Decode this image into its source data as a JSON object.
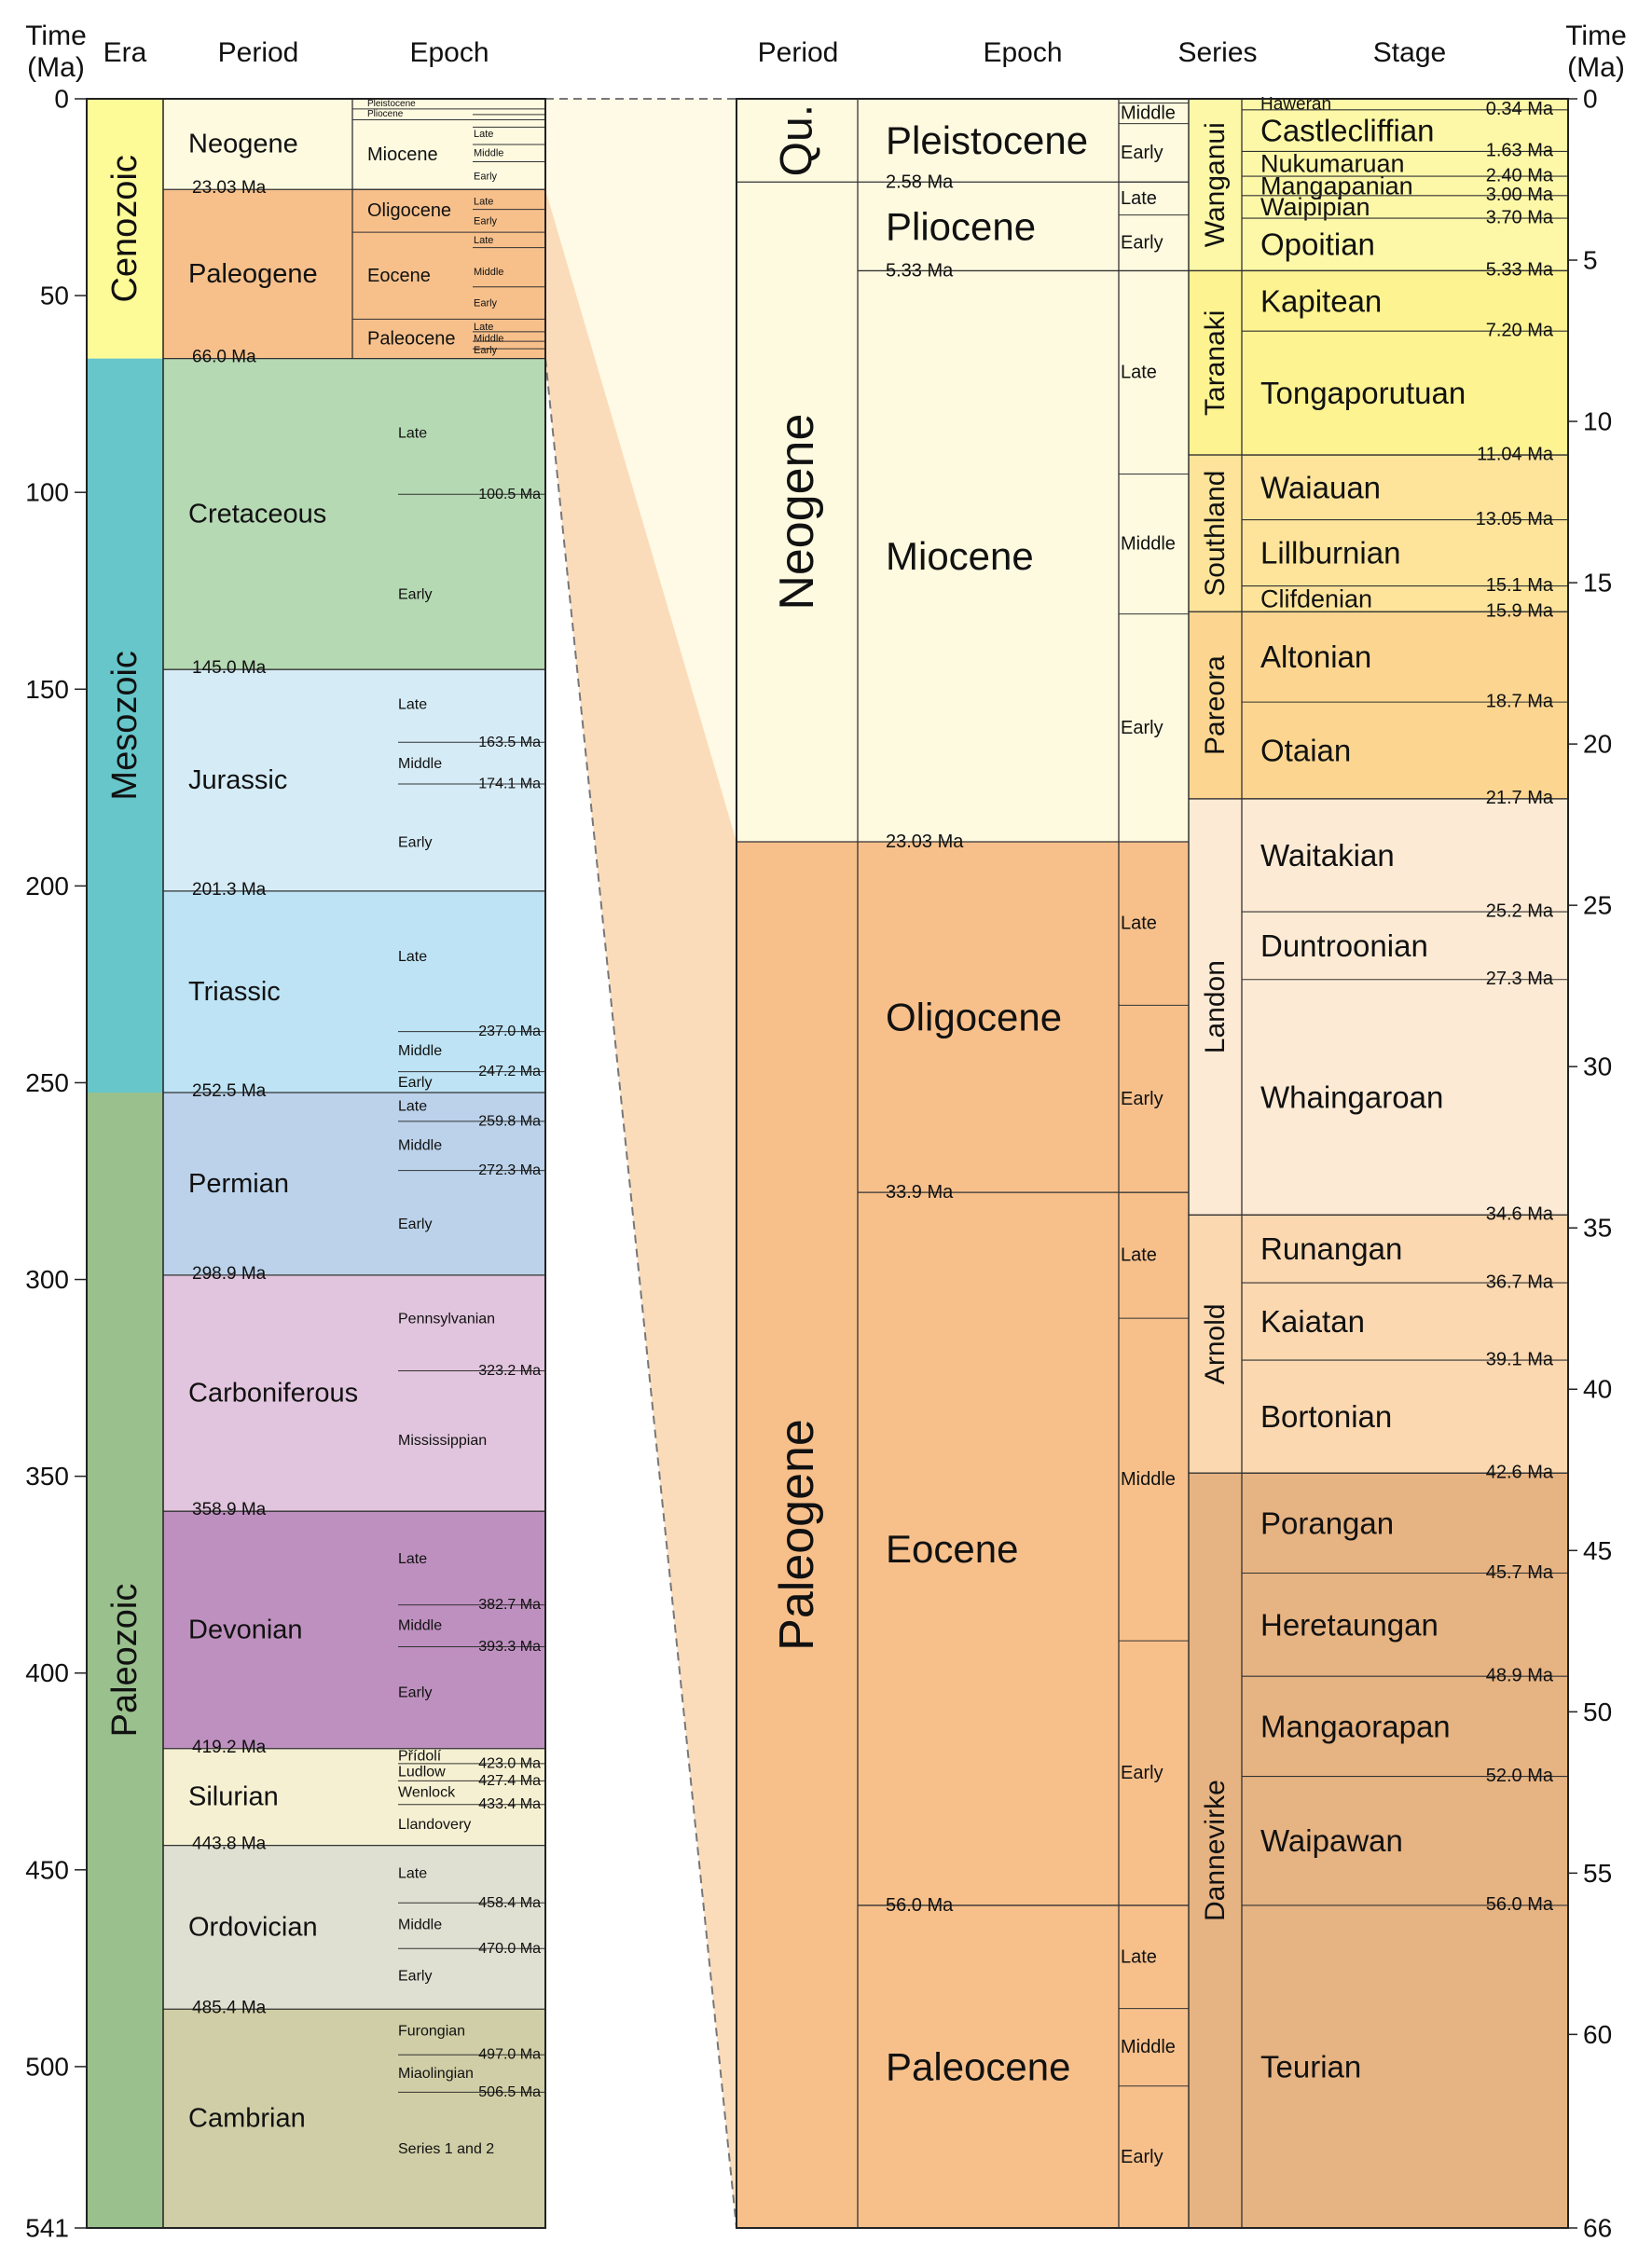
{
  "colors": {
    "cenozoic": "#fdfb98",
    "mesozoic": "#67c6ca",
    "paleozoic": "#99c08d",
    "neogene": "#fefae0",
    "paleogene": "#f7c08b",
    "cretaceous": "#b5d9b3",
    "jurassic": "#d5ecf7",
    "triassic": "#bde3f4",
    "permian": "#bbd2ea",
    "carboniferous": "#e1c4dd",
    "devonian": "#be90bf",
    "silurian": "#f5f0d1",
    "ordovician": "#e0e0d2",
    "cambrian": "#d0cea6",
    "wanganui": "#fdf8a7",
    "taranaki": "#fdf391",
    "southland": "#fde49a",
    "pareora": "#fcd690",
    "landon": "#fdead4",
    "arnold": "#fbd8b0",
    "dannevirke": "#e6b382",
    "connector_neogene": "#fefae5",
    "connector_paleogene": "#fbdcba"
  },
  "left_panel": {
    "headers": {
      "time": "Time",
      "time_unit": "(Ma)",
      "era": "Era",
      "period": "Period",
      "epoch": "Epoch"
    },
    "axis": {
      "min": 0,
      "max": 541,
      "ticks": [
        "0",
        "50",
        "100",
        "150",
        "200",
        "250",
        "300",
        "350",
        "400",
        "450",
        "500",
        "541"
      ]
    },
    "eras": [
      {
        "name": "Cenozoic",
        "start": 0,
        "end": 66.0,
        "color": "cenozoic"
      },
      {
        "name": "Mesozoic",
        "start": 66.0,
        "end": 252.5,
        "color": "mesozoic"
      },
      {
        "name": "Paleozoic",
        "start": 252.5,
        "end": 541,
        "color": "paleozoic"
      }
    ],
    "periods": [
      {
        "name": "Neogene",
        "start": 0,
        "end": 23.03,
        "color": "neogene",
        "boundary_label": ""
      },
      {
        "name": "Paleogene",
        "start": 23.03,
        "end": 66.0,
        "color": "paleogene",
        "boundary_label": "23.03 Ma"
      },
      {
        "name": "Cretaceous",
        "start": 66.0,
        "end": 145.0,
        "color": "cretaceous",
        "boundary_label": "66.0 Ma"
      },
      {
        "name": "Jurassic",
        "start": 145.0,
        "end": 201.3,
        "color": "jurassic",
        "boundary_label": "145.0 Ma"
      },
      {
        "name": "Triassic",
        "start": 201.3,
        "end": 252.5,
        "color": "triassic",
        "boundary_label": "201.3 Ma"
      },
      {
        "name": "Permian",
        "start": 252.5,
        "end": 298.9,
        "color": "permian",
        "boundary_label": "252.5 Ma"
      },
      {
        "name": "Carboniferous",
        "start": 298.9,
        "end": 358.9,
        "color": "carboniferous",
        "boundary_label": "298.9 Ma"
      },
      {
        "name": "Devonian",
        "start": 358.9,
        "end": 419.2,
        "color": "devonian",
        "boundary_label": "358.9 Ma"
      },
      {
        "name": "Silurian",
        "start": 419.2,
        "end": 443.8,
        "color": "silurian",
        "boundary_label": "419.2 Ma"
      },
      {
        "name": "Ordovician",
        "start": 443.8,
        "end": 485.4,
        "color": "ordovician",
        "boundary_label": "443.8 Ma"
      },
      {
        "name": "Cambrian",
        "start": 485.4,
        "end": 541,
        "color": "cambrian",
        "boundary_label": "485.4 Ma"
      }
    ],
    "cenozoic_epochs": [
      {
        "name": "Pleistocene",
        "start": 0,
        "end": 2.58
      },
      {
        "name": "Pliocene",
        "start": 2.58,
        "end": 5.33
      },
      {
        "name": "Miocene",
        "start": 5.33,
        "end": 23.03
      },
      {
        "name": "Oligocene",
        "start": 23.03,
        "end": 33.9
      },
      {
        "name": "Eocene",
        "start": 33.9,
        "end": 56.0
      },
      {
        "name": "Paleocene",
        "start": 56.0,
        "end": 66.0
      }
    ],
    "cenozoic_subepochs": [
      {
        "label": "Late",
        "at": 9.0
      },
      {
        "label": "Middle",
        "at": 13.9
      },
      {
        "label": "Early",
        "at": 19.8
      },
      {
        "label": "Late",
        "at": 26.2
      },
      {
        "label": "Early",
        "at": 31.2
      },
      {
        "label": "Late",
        "at": 36.0
      },
      {
        "label": "Middle",
        "at": 44.0
      },
      {
        "label": "Early",
        "at": 52.0
      },
      {
        "label": "Late",
        "at": 58.0
      },
      {
        "label": "Middle",
        "at": 61.0
      },
      {
        "label": "Early",
        "at": 64.0
      }
    ],
    "cenozoic_subepoch_lines": [
      4.0,
      7.2,
      11.6,
      16.0,
      28.1,
      37.8,
      47.8,
      59.2,
      61.6,
      63.5
    ],
    "mesozoic_paleozoic_epochs": [
      {
        "label": "Late",
        "at": 85.0
      },
      {
        "label": "Early",
        "at": 126.0
      },
      {
        "label": "Late",
        "at": 154.0
      },
      {
        "label": "Middle",
        "at": 169.0
      },
      {
        "label": "Early",
        "at": 189.0
      },
      {
        "label": "Late",
        "at": 218.0
      },
      {
        "label": "Middle",
        "at": 242.0
      },
      {
        "label": "Early",
        "at": 250.0
      },
      {
        "label": "Late",
        "at": 256.0
      },
      {
        "label": "Middle",
        "at": 266.0
      },
      {
        "label": "Early",
        "at": 286.0
      },
      {
        "label": "Pennsylvanian",
        "at": 310.0
      },
      {
        "label": "Mississippian",
        "at": 341.0
      },
      {
        "label": "Late",
        "at": 371.0
      },
      {
        "label": "Middle",
        "at": 388.0
      },
      {
        "label": "Early",
        "at": 405.0
      },
      {
        "label": "Přídolí",
        "at": 421.2
      },
      {
        "label": "Ludlow",
        "at": 425.2
      },
      {
        "label": "Wenlock",
        "at": 430.4
      },
      {
        "label": "Llandovery",
        "at": 438.6
      },
      {
        "label": "Late",
        "at": 451.0
      },
      {
        "label": "Middle",
        "at": 464.0
      },
      {
        "label": "Early",
        "at": 477.0
      },
      {
        "label": "Furongian",
        "at": 491.0
      },
      {
        "label": "Miaolingian",
        "at": 501.8
      },
      {
        "label": "Series 1 and 2",
        "at": 521.0
      }
    ],
    "epoch_boundaries": [
      {
        "at": 100.5,
        "label": "100.5 Ma"
      },
      {
        "at": 163.5,
        "label": "163.5 Ma"
      },
      {
        "at": 174.1,
        "label": "174.1 Ma"
      },
      {
        "at": 237.0,
        "label": "237.0 Ma"
      },
      {
        "at": 247.2,
        "label": "247.2 Ma"
      },
      {
        "at": 259.8,
        "label": "259.8 Ma"
      },
      {
        "at": 272.3,
        "label": "272.3 Ma"
      },
      {
        "at": 323.2,
        "label": "323.2 Ma"
      },
      {
        "at": 382.7,
        "label": "382.7 Ma"
      },
      {
        "at": 393.3,
        "label": "393.3 Ma"
      },
      {
        "at": 423.0,
        "label": "423.0 Ma"
      },
      {
        "at": 427.4,
        "label": "427.4 Ma"
      },
      {
        "at": 433.4,
        "label": "433.4 Ma"
      },
      {
        "at": 458.4,
        "label": "458.4 Ma"
      },
      {
        "at": 470.0,
        "label": "470.0 Ma"
      },
      {
        "at": 497.0,
        "label": "497.0 Ma"
      },
      {
        "at": 506.5,
        "label": "506.5 Ma"
      }
    ]
  },
  "right_panel": {
    "headers": {
      "period": "Period",
      "epoch": "Epoch",
      "series": "Series",
      "stage": "Stage",
      "time": "Time",
      "time_unit": "(Ma)"
    },
    "axis": {
      "min": 0,
      "max": 66,
      "ticks": [
        "0",
        "5",
        "10",
        "15",
        "20",
        "25",
        "30",
        "35",
        "40",
        "45",
        "50",
        "55",
        "60",
        "66"
      ]
    },
    "periods": [
      {
        "name": "Qu.",
        "start": 0,
        "end": 2.58,
        "color": "neogene"
      },
      {
        "name": "Neogene",
        "start": 2.58,
        "end": 23.03,
        "color": "neogene"
      },
      {
        "name": "Paleogene",
        "start": 23.03,
        "end": 66,
        "color": "paleogene"
      }
    ],
    "epochs": [
      {
        "name": "Pleistocene",
        "start": 0,
        "end": 2.58,
        "boundary_label": ""
      },
      {
        "name": "Pliocene",
        "start": 2.58,
        "end": 5.33,
        "boundary_label": "2.58 Ma"
      },
      {
        "name": "Miocene",
        "start": 5.33,
        "end": 23.03,
        "boundary_label": "5.33 Ma"
      },
      {
        "name": "Oligocene",
        "start": 23.03,
        "end": 33.9,
        "boundary_label": "23.03 Ma"
      },
      {
        "name": "Eocene",
        "start": 33.9,
        "end": 56.0,
        "boundary_label": "33.9 Ma"
      },
      {
        "name": "Paleocene",
        "start": 56.0,
        "end": 66,
        "boundary_label": "56.0 Ma"
      }
    ],
    "subepochs": [
      {
        "label": "Middle",
        "start": 0.13,
        "end": 0.77
      },
      {
        "label": "Early",
        "start": 0.77,
        "end": 2.58
      },
      {
        "label": "Late",
        "start": 2.58,
        "end": 3.6
      },
      {
        "label": "Early",
        "start": 3.6,
        "end": 5.33
      },
      {
        "label": "Late",
        "start": 5.33,
        "end": 11.63
      },
      {
        "label": "Middle",
        "start": 11.63,
        "end": 15.97
      },
      {
        "label": "Early",
        "start": 15.97,
        "end": 23.03
      },
      {
        "label": "Late",
        "start": 23.03,
        "end": 28.1
      },
      {
        "label": "Early",
        "start": 28.1,
        "end": 33.9
      },
      {
        "label": "Late",
        "start": 33.9,
        "end": 37.8
      },
      {
        "label": "Middle",
        "start": 37.8,
        "end": 47.8
      },
      {
        "label": "Early",
        "start": 47.8,
        "end": 56.0
      },
      {
        "label": "Late",
        "start": 56.0,
        "end": 59.2
      },
      {
        "label": "Middle",
        "start": 59.2,
        "end": 61.6
      },
      {
        "label": "Early",
        "start": 61.6,
        "end": 66
      }
    ],
    "series": [
      {
        "name": "Wanganui",
        "start": 0,
        "end": 5.33,
        "color": "wanganui"
      },
      {
        "name": "Taranaki",
        "start": 5.33,
        "end": 11.04,
        "color": "taranaki"
      },
      {
        "name": "Southland",
        "start": 11.04,
        "end": 15.9,
        "color": "southland"
      },
      {
        "name": "Pareora",
        "start": 15.9,
        "end": 21.7,
        "color": "pareora"
      },
      {
        "name": "Landon",
        "start": 21.7,
        "end": 34.6,
        "color": "landon"
      },
      {
        "name": "Arnold",
        "start": 34.6,
        "end": 42.6,
        "color": "arnold"
      },
      {
        "name": "Dannevirke",
        "start": 42.6,
        "end": 66,
        "color": "dannevirke"
      }
    ],
    "stages": [
      {
        "name": "Haweran",
        "start": 0,
        "end": 0.34,
        "boundary_label": "0.34 Ma"
      },
      {
        "name": "Castlecliffian",
        "start": 0.34,
        "end": 1.63,
        "boundary_label": "1.63 Ma"
      },
      {
        "name": "Nukumaruan",
        "start": 1.63,
        "end": 2.4,
        "boundary_label": "2.40 Ma"
      },
      {
        "name": "Mangapanian",
        "start": 2.4,
        "end": 3.0,
        "boundary_label": "3.00 Ma"
      },
      {
        "name": "Waipipian",
        "start": 3.0,
        "end": 3.7,
        "boundary_label": "3.70 Ma"
      },
      {
        "name": "Opoitian",
        "start": 3.7,
        "end": 5.33,
        "boundary_label": "5.33 Ma"
      },
      {
        "name": "Kapitean",
        "start": 5.33,
        "end": 7.2,
        "boundary_label": "7.20 Ma"
      },
      {
        "name": "Tongaporutuan",
        "start": 7.2,
        "end": 11.04,
        "boundary_label": "11.04 Ma"
      },
      {
        "name": "Waiauan",
        "start": 11.04,
        "end": 13.05,
        "boundary_label": "13.05 Ma"
      },
      {
        "name": "Lillburnian",
        "start": 13.05,
        "end": 15.1,
        "boundary_label": "15.1 Ma"
      },
      {
        "name": "Clifdenian",
        "start": 15.1,
        "end": 15.9,
        "boundary_label": "15.9 Ma"
      },
      {
        "name": "Altonian",
        "start": 15.9,
        "end": 18.7,
        "boundary_label": "18.7 Ma"
      },
      {
        "name": "Otaian",
        "start": 18.7,
        "end": 21.7,
        "boundary_label": "21.7 Ma"
      },
      {
        "name": "Waitakian",
        "start": 21.7,
        "end": 25.2,
        "boundary_label": "25.2 Ma"
      },
      {
        "name": "Duntroonian",
        "start": 25.2,
        "end": 27.3,
        "boundary_label": "27.3 Ma"
      },
      {
        "name": "Whaingaroan",
        "start": 27.3,
        "end": 34.6,
        "boundary_label": "34.6 Ma"
      },
      {
        "name": "Runangan",
        "start": 34.6,
        "end": 36.7,
        "boundary_label": "36.7 Ma"
      },
      {
        "name": "Kaiatan",
        "start": 36.7,
        "end": 39.1,
        "boundary_label": "39.1 Ma"
      },
      {
        "name": "Bortonian",
        "start": 39.1,
        "end": 42.6,
        "boundary_label": "42.6 Ma"
      },
      {
        "name": "Porangan",
        "start": 42.6,
        "end": 45.7,
        "boundary_label": "45.7 Ma"
      },
      {
        "name": "Heretaungan",
        "start": 45.7,
        "end": 48.9,
        "boundary_label": "48.9 Ma"
      },
      {
        "name": "Mangaorapan",
        "start": 48.9,
        "end": 52.0,
        "boundary_label": "52.0 Ma"
      },
      {
        "name": "Waipawan",
        "start": 52.0,
        "end": 56.0,
        "boundary_label": "56.0 Ma"
      },
      {
        "name": "Teurian",
        "start": 56.0,
        "end": 66,
        "boundary_label": ""
      }
    ]
  }
}
